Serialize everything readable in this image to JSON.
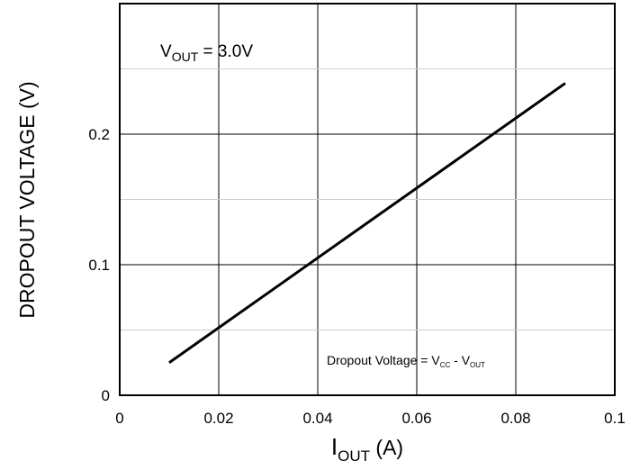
{
  "chart_data": {
    "type": "line",
    "xlabel": "I",
    "xlabel_sub": "OUT",
    "xlabel_unit": " (A)",
    "ylabel": "DROPOUT VOLTAGE  (V)",
    "xlim": [
      0,
      0.1
    ],
    "ylim": [
      0,
      0.3
    ],
    "x_ticks": [
      0,
      0.02,
      0.04,
      0.06,
      0.08,
      0.1
    ],
    "x_tick_labels": [
      "0",
      "0.02",
      "0.04",
      "0.06",
      "0.08",
      "0.1"
    ],
    "y_ticks": [
      0,
      0.1,
      0.2
    ],
    "y_tick_labels": [
      "0",
      "0.1",
      "0.2"
    ],
    "grid": true,
    "series": [
      {
        "x": [
          0.01,
          0.09
        ],
        "y": [
          0.025,
          0.239
        ]
      }
    ],
    "annotations": {
      "vout_main": "V",
      "vout_sub": "OUT",
      "vout_rest": " = 3.0V",
      "dropout_text": "Dropout  Voltage  = V",
      "dropout_sub_cc": "CC",
      "dropout_mid": " - V",
      "dropout_sub_out": "OUT"
    }
  }
}
